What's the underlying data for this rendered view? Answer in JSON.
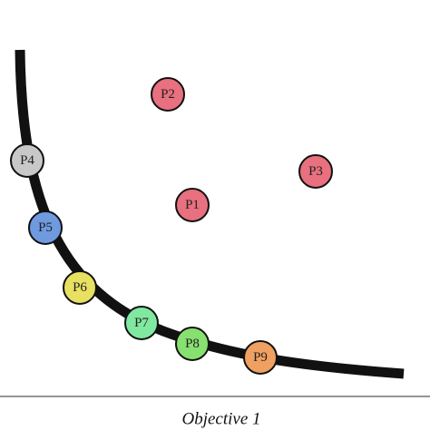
{
  "nodes": [
    {
      "label": "P1"
    },
    {
      "label": "P2"
    },
    {
      "label": "P3"
    },
    {
      "label": "P4"
    },
    {
      "label": "P5"
    },
    {
      "label": "P6"
    },
    {
      "label": "P7"
    },
    {
      "label": "P8"
    },
    {
      "label": "P9"
    }
  ],
  "axis": {
    "label": "Objective 1"
  }
}
